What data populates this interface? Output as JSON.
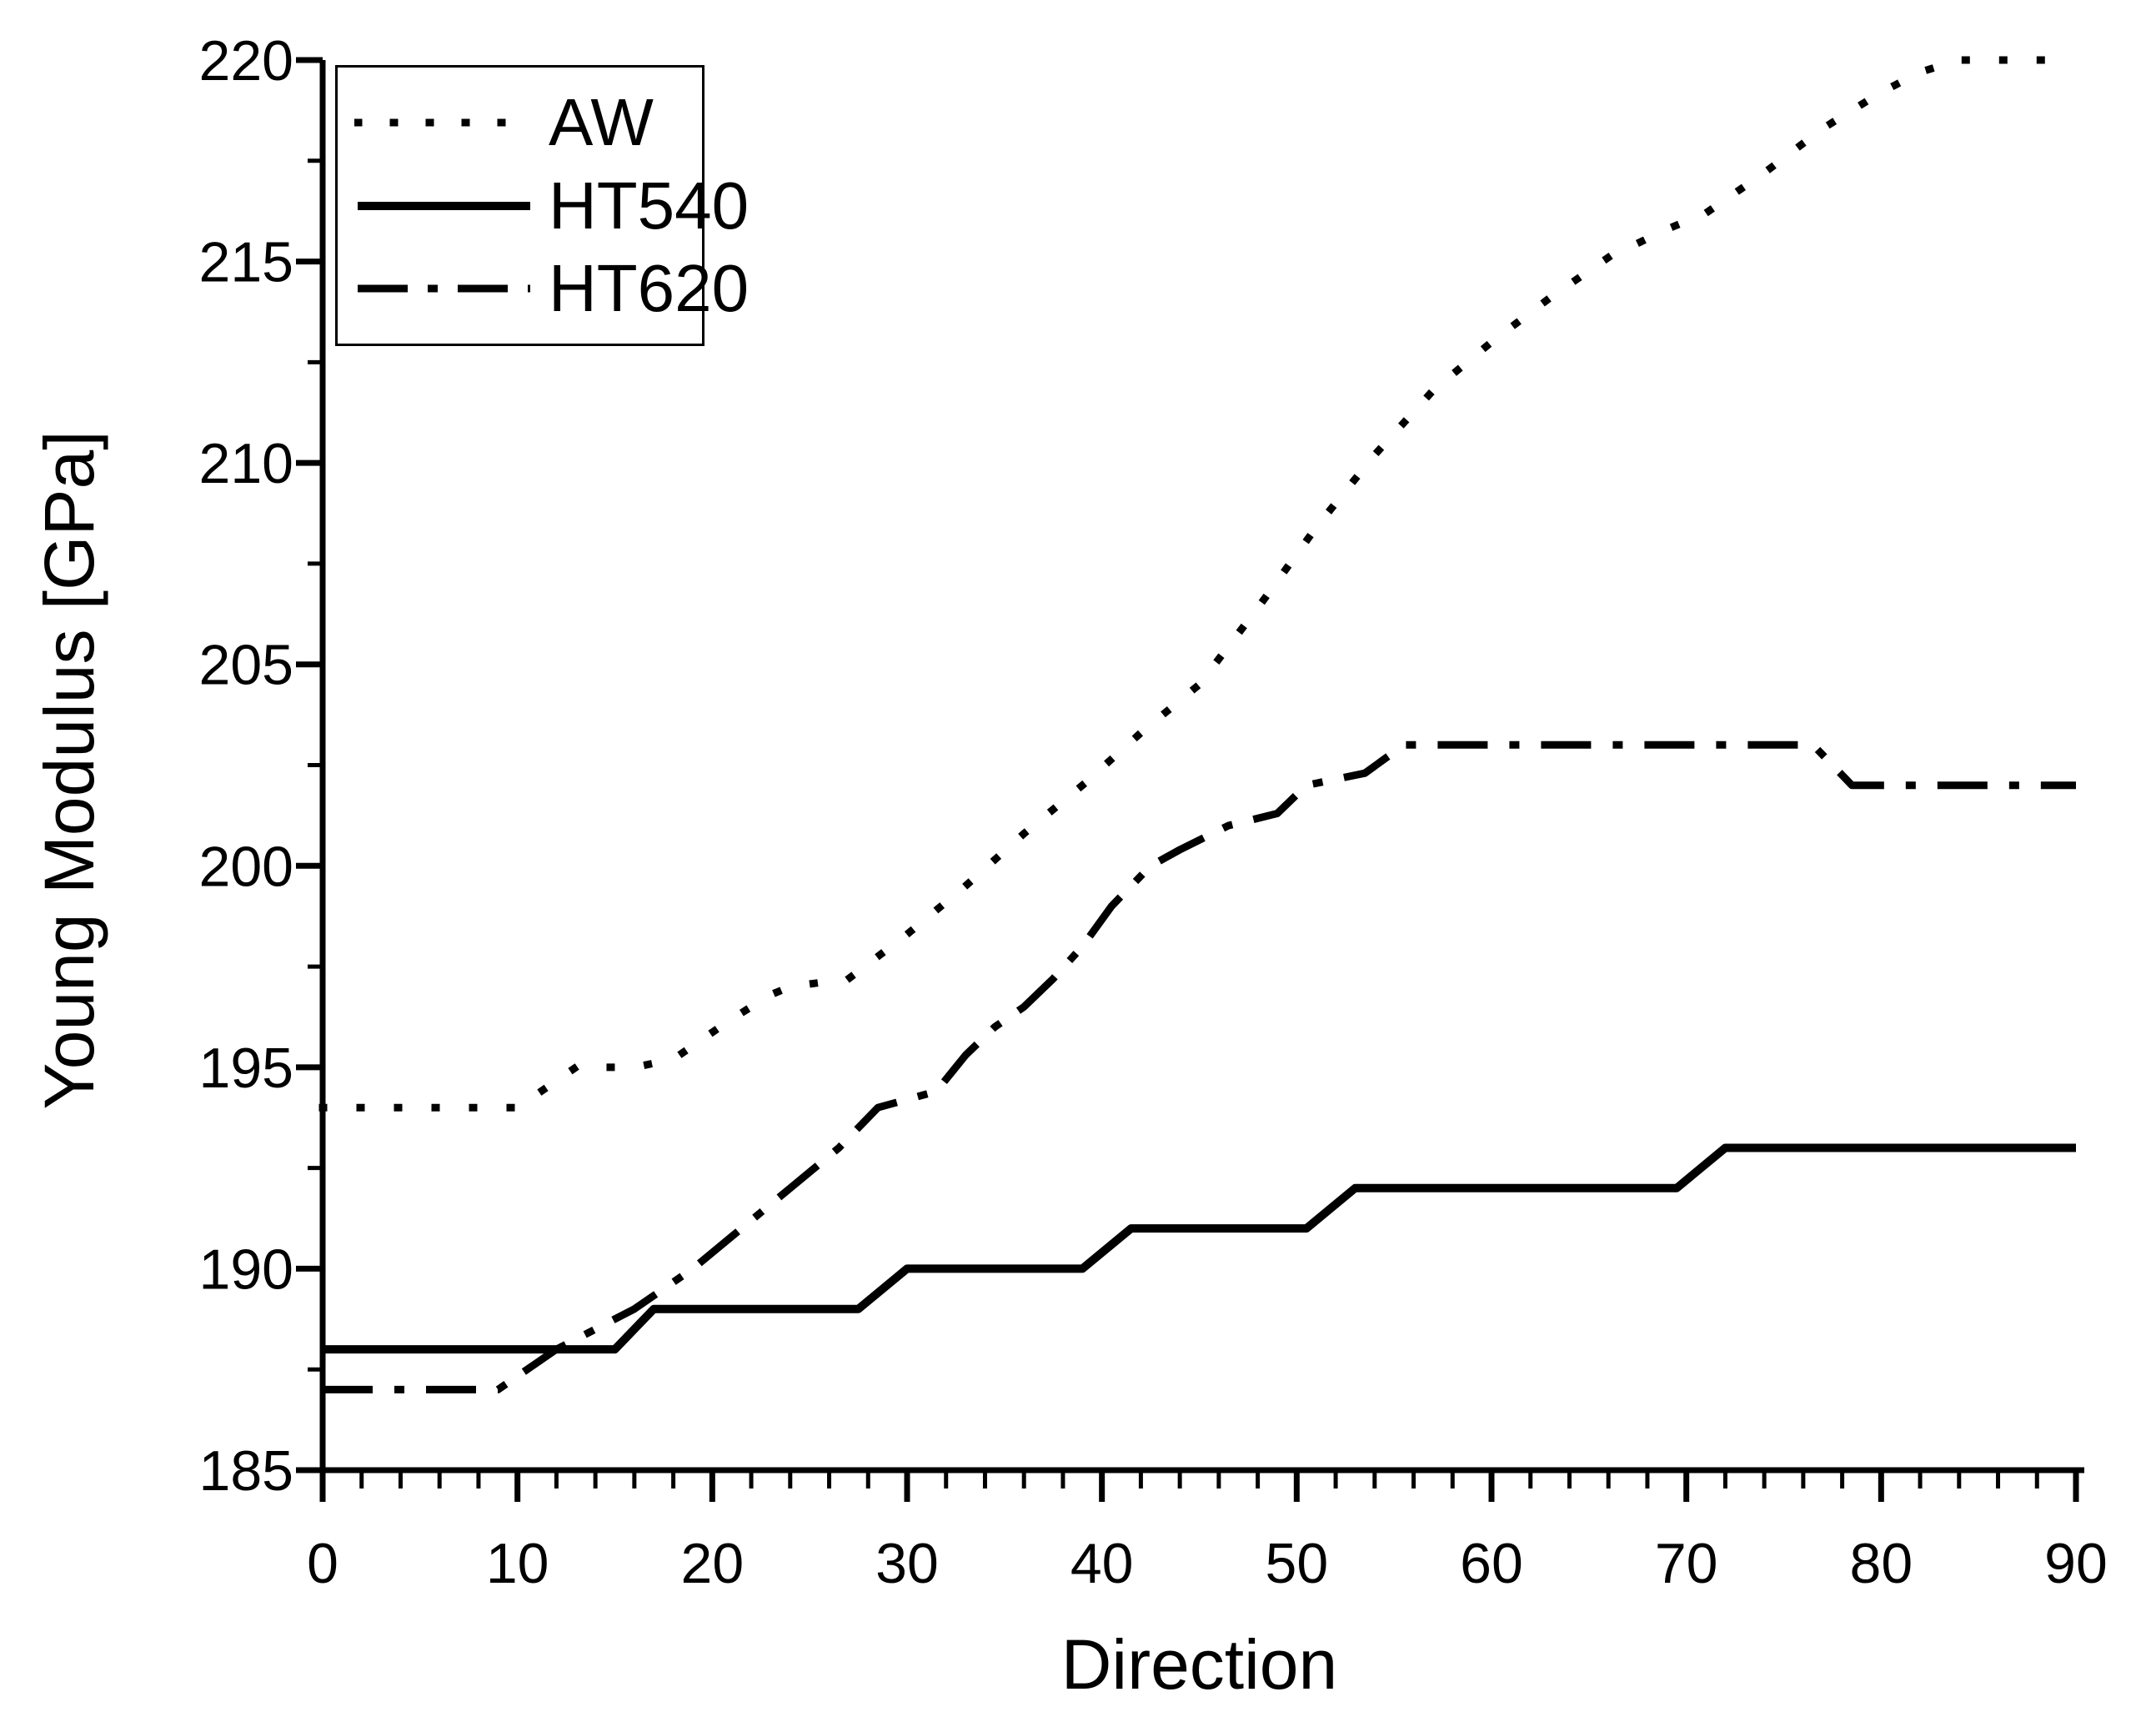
{
  "figure": {
    "x_axis_title": "Direction",
    "y_axis_title": "Young Modulus [GPa]",
    "background_color": "#ffffff",
    "ink_color": "#000000"
  },
  "chart_data": {
    "type": "line",
    "title": "",
    "xlabel": "Direction",
    "ylabel": "Young Modulus [GPa]",
    "xlim": [
      0,
      90
    ],
    "ylim": [
      185,
      220
    ],
    "x_major_ticks": [
      0,
      10,
      20,
      30,
      40,
      50,
      60,
      70,
      80,
      90
    ],
    "x_minor_step": 2,
    "y_major_ticks": [
      185,
      190,
      195,
      200,
      205,
      210,
      215,
      220
    ],
    "y_minor_step": 2.5,
    "grid": false,
    "legend_position": "top-left",
    "series": [
      {
        "name": "AW",
        "style": "dotted",
        "points": [
          [
            0,
            194
          ],
          [
            5,
            194
          ],
          [
            10,
            194
          ],
          [
            13,
            195
          ],
          [
            16,
            195
          ],
          [
            18,
            195.2
          ],
          [
            21,
            196.2
          ],
          [
            23,
            196.8
          ],
          [
            24,
            197
          ],
          [
            27,
            197.2
          ],
          [
            30,
            198.3
          ],
          [
            33,
            199.5
          ],
          [
            36,
            200.8
          ],
          [
            39,
            202
          ],
          [
            42,
            203.3
          ],
          [
            45,
            204.5
          ],
          [
            48,
            206.4
          ],
          [
            51,
            208.4
          ],
          [
            54,
            210.2
          ],
          [
            57,
            211.8
          ],
          [
            60,
            213
          ],
          [
            63,
            214.1
          ],
          [
            66,
            215.1
          ],
          [
            69,
            215.8
          ],
          [
            71,
            216.2
          ],
          [
            74,
            217.2
          ],
          [
            77,
            218.3
          ],
          [
            80,
            219.2
          ],
          [
            82,
            219.7
          ],
          [
            84,
            220
          ],
          [
            90,
            220
          ]
        ]
      },
      {
        "name": "HT540",
        "style": "solid",
        "points": [
          [
            0,
            188
          ],
          [
            15,
            188
          ],
          [
            17,
            189
          ],
          [
            27.5,
            189
          ],
          [
            30,
            190
          ],
          [
            39,
            190
          ],
          [
            41.5,
            191
          ],
          [
            50.5,
            191
          ],
          [
            53,
            192
          ],
          [
            69.5,
            192
          ],
          [
            72,
            193
          ],
          [
            90,
            193
          ]
        ]
      },
      {
        "name": "HT620",
        "style": "dashdot",
        "points": [
          [
            0,
            187
          ],
          [
            9,
            187
          ],
          [
            12,
            188
          ],
          [
            16,
            189
          ],
          [
            19,
            190
          ],
          [
            21.5,
            191
          ],
          [
            24,
            192
          ],
          [
            26.5,
            193
          ],
          [
            28.5,
            194
          ],
          [
            31.5,
            194.4
          ],
          [
            33,
            195.3
          ],
          [
            34.5,
            196
          ],
          [
            36,
            196.5
          ],
          [
            37.5,
            197.2
          ],
          [
            39,
            198
          ],
          [
            40.5,
            199
          ],
          [
            42.5,
            200
          ],
          [
            44,
            200.4
          ],
          [
            46.5,
            201
          ],
          [
            49,
            201.3
          ],
          [
            50.5,
            202
          ],
          [
            53.5,
            202.3
          ],
          [
            55.5,
            203
          ],
          [
            76.5,
            203
          ],
          [
            78.5,
            202
          ],
          [
            90,
            202
          ]
        ]
      }
    ]
  }
}
